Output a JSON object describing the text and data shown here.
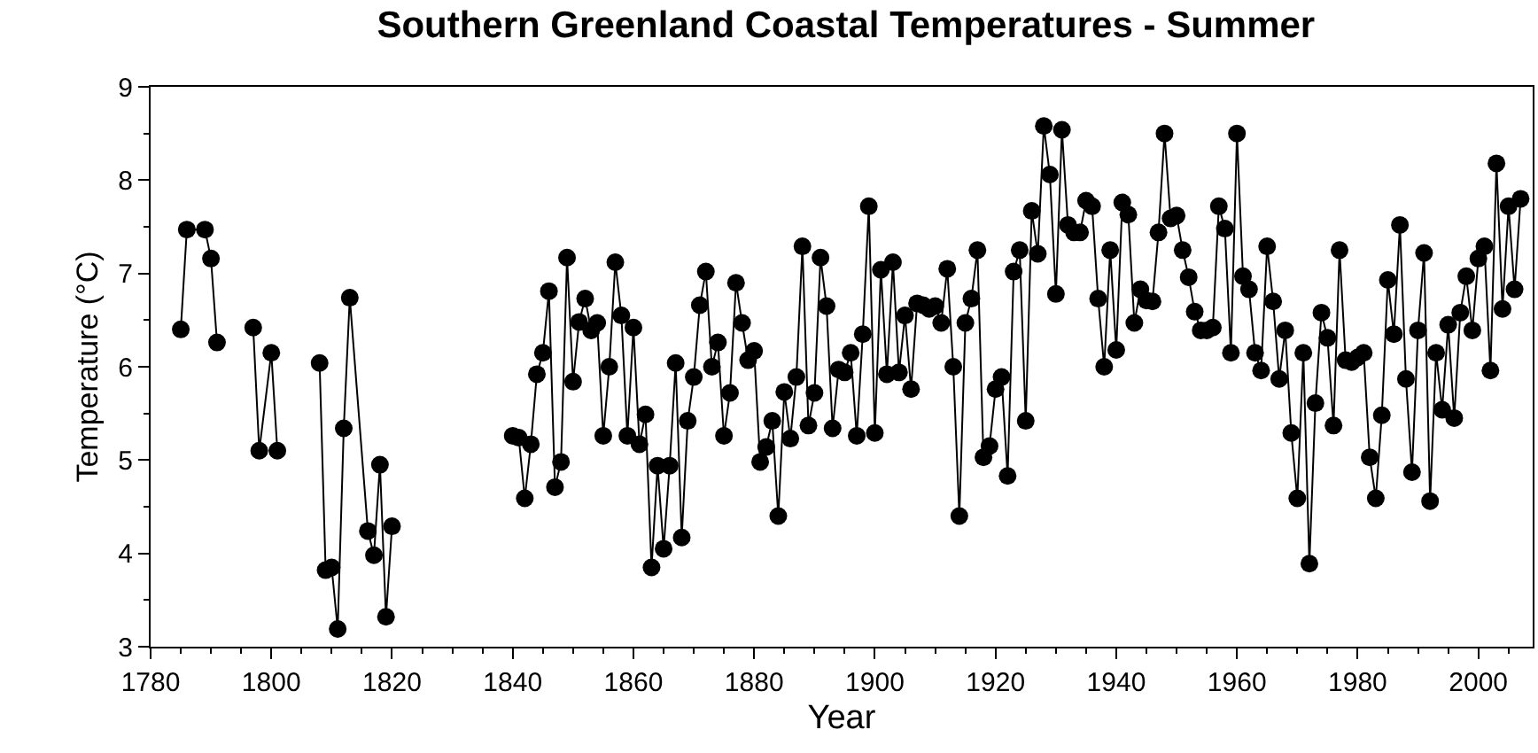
{
  "chart_data": {
    "type": "line",
    "title": "Southern Greenland Coastal Temperatures - Summer",
    "xlabel": "Year",
    "ylabel": "Temperature (°C)",
    "x": [
      1785,
      1786,
      1789,
      1790,
      1791,
      1793,
      1797,
      1798,
      1800,
      1801,
      1804,
      1808,
      1809,
      1810,
      1811,
      1812,
      1813,
      1816,
      1817,
      1818,
      1819,
      1820,
      1830,
      1840,
      1841,
      1842,
      1843,
      1844,
      1845,
      1846,
      1847,
      1848,
      1849,
      1850,
      1851,
      1852,
      1853,
      1854,
      1855,
      1856,
      1857,
      1858,
      1859,
      1860,
      1861,
      1862,
      1863,
      1864,
      1865,
      1866,
      1867,
      1868,
      1869,
      1870,
      1871,
      1872,
      1873,
      1874,
      1875,
      1876,
      1877,
      1878,
      1879,
      1880,
      1881,
      1882,
      1883,
      1884,
      1885,
      1886,
      1887,
      1888,
      1889,
      1890,
      1891,
      1892,
      1893,
      1894,
      1895,
      1896,
      1897,
      1898,
      1899,
      1900,
      1901,
      1902,
      1903,
      1904,
      1905,
      1906,
      1907,
      1908,
      1909,
      1910,
      1911,
      1912,
      1913,
      1914,
      1915,
      1916,
      1917,
      1918,
      1919,
      1920,
      1921,
      1922,
      1923,
      1924,
      1925,
      1926,
      1927,
      1928,
      1929,
      1930,
      1931,
      1932,
      1933,
      1934,
      1935,
      1936,
      1937,
      1938,
      1939,
      1940,
      1941,
      1942,
      1943,
      1944,
      1945,
      1946,
      1947,
      1948,
      1949,
      1950,
      1951,
      1952,
      1953,
      1954,
      1955,
      1956,
      1957,
      1958,
      1959,
      1960,
      1961,
      1962,
      1963,
      1964,
      1965,
      1966,
      1967,
      1968,
      1969,
      1970,
      1971,
      1972,
      1973,
      1974,
      1975,
      1976,
      1977,
      1978,
      1979,
      1980,
      1981,
      1982,
      1983,
      1984,
      1985,
      1986,
      1987,
      1988,
      1989,
      1990,
      1991,
      1992,
      1993,
      1994,
      1995,
      1996,
      1997,
      1998,
      1999,
      2000,
      2001,
      2002,
      2003,
      2004,
      2005,
      2006,
      2007
    ],
    "series": [
      {
        "color": "#000000",
        "values": [
          6.4,
          7.47,
          7.47,
          7.16,
          6.26,
          null,
          6.42,
          5.1,
          6.15,
          5.1,
          null,
          6.04,
          3.82,
          3.85,
          3.19,
          5.34,
          6.74,
          4.24,
          3.98,
          4.95,
          3.32,
          4.29,
          null,
          5.26,
          5.24,
          4.59,
          5.17,
          5.92,
          6.15,
          6.81,
          4.71,
          4.98,
          7.17,
          5.84,
          6.48,
          6.73,
          6.39,
          6.47,
          5.26,
          6.0,
          7.12,
          6.55,
          5.26,
          6.42,
          5.17,
          5.49,
          3.85,
          4.94,
          4.05,
          4.94,
          6.04,
          4.17,
          5.42,
          5.89,
          6.66,
          7.02,
          6.0,
          6.26,
          5.26,
          5.72,
          6.9,
          6.47,
          6.07,
          6.17,
          4.98,
          5.14,
          5.42,
          4.4,
          5.73,
          5.23,
          5.89,
          7.29,
          5.37,
          5.72,
          7.17,
          6.65,
          5.34,
          5.97,
          5.94,
          6.15,
          5.26,
          6.35,
          7.72,
          5.29,
          7.04,
          5.92,
          7.12,
          5.94,
          6.55,
          5.76,
          6.68,
          6.66,
          6.62,
          6.65,
          6.47,
          7.05,
          6.0,
          4.4,
          6.47,
          6.73,
          7.25,
          5.03,
          5.15,
          5.76,
          5.89,
          4.83,
          7.02,
          7.25,
          5.42,
          7.67,
          7.21,
          8.58,
          8.06,
          6.78,
          8.54,
          7.52,
          7.44,
          7.44,
          7.78,
          7.72,
          6.73,
          6.0,
          7.25,
          6.18,
          7.76,
          7.63,
          6.47,
          6.83,
          6.71,
          6.7,
          7.44,
          8.5,
          7.59,
          7.62,
          7.25,
          6.96,
          6.59,
          6.39,
          6.39,
          6.42,
          7.72,
          7.48,
          6.15,
          8.5,
          6.97,
          6.83,
          6.15,
          5.96,
          7.29,
          6.7,
          5.87,
          6.39,
          5.29,
          4.59,
          6.15,
          3.89,
          5.61,
          6.58,
          6.31,
          5.37,
          7.25,
          6.07,
          6.05,
          6.1,
          6.15,
          5.03,
          4.59,
          5.48,
          6.93,
          6.35,
          7.52,
          5.87,
          4.87,
          6.39,
          7.22,
          4.56,
          6.15,
          5.54,
          6.45,
          5.45,
          6.58,
          6.97,
          6.39,
          7.16,
          7.29,
          5.96,
          8.18,
          6.62,
          7.72,
          6.83,
          7.8
        ]
      }
    ],
    "marker": "circle",
    "line_style": "solid",
    "xlim": [
      1780,
      2009
    ],
    "xticks": [
      1780,
      {
        "value": 1785,
        "label": null
      },
      {
        "value": 1790,
        "label": null
      },
      {
        "value": 1795,
        "label": null
      },
      1800,
      {
        "value": 1805,
        "label": null
      },
      {
        "value": 1810,
        "label": null
      },
      {
        "value": 1815,
        "label": null
      },
      1820,
      {
        "value": 1825,
        "label": null
      },
      {
        "value": 1830,
        "label": null
      },
      {
        "value": 1835,
        "label": null
      },
      1840,
      {
        "value": 1845,
        "label": null
      },
      {
        "value": 1850,
        "label": null
      },
      {
        "value": 1855,
        "label": null
      },
      1860,
      {
        "value": 1865,
        "label": null
      },
      {
        "value": 1870,
        "label": null
      },
      {
        "value": 1875,
        "label": null
      },
      1880,
      {
        "value": 1885,
        "label": null
      },
      {
        "value": 1890,
        "label": null
      },
      {
        "value": 1895,
        "label": null
      },
      1900,
      {
        "value": 1905,
        "label": null
      },
      {
        "value": 1910,
        "label": null
      },
      {
        "value": 1915,
        "label": null
      },
      1920,
      {
        "value": 1925,
        "label": null
      },
      {
        "value": 1930,
        "label": null
      },
      {
        "value": 1935,
        "label": null
      },
      1940,
      {
        "value": 1945,
        "label": null
      },
      {
        "value": 1950,
        "label": null
      },
      {
        "value": 1955,
        "label": null
      },
      1960,
      {
        "value": 1965,
        "label": null
      },
      {
        "value": 1970,
        "label": null
      },
      {
        "value": 1975,
        "label": null
      },
      1980,
      {
        "value": 1985,
        "label": null
      },
      {
        "value": 1990,
        "label": null
      },
      {
        "value": 1995,
        "label": null
      },
      2000,
      {
        "value": 2005,
        "label": null
      }
    ],
    "ylim": [
      3,
      9
    ],
    "yticks": [
      3,
      {
        "value": 3.5,
        "label": null
      },
      4,
      {
        "value": 4.5,
        "label": null
      },
      5,
      {
        "value": 5.5,
        "label": null
      },
      6,
      {
        "value": 6.5,
        "label": null
      },
      7,
      {
        "value": 7.5,
        "label": null
      },
      8,
      {
        "value": 8.5,
        "label": null
      },
      9
    ]
  }
}
